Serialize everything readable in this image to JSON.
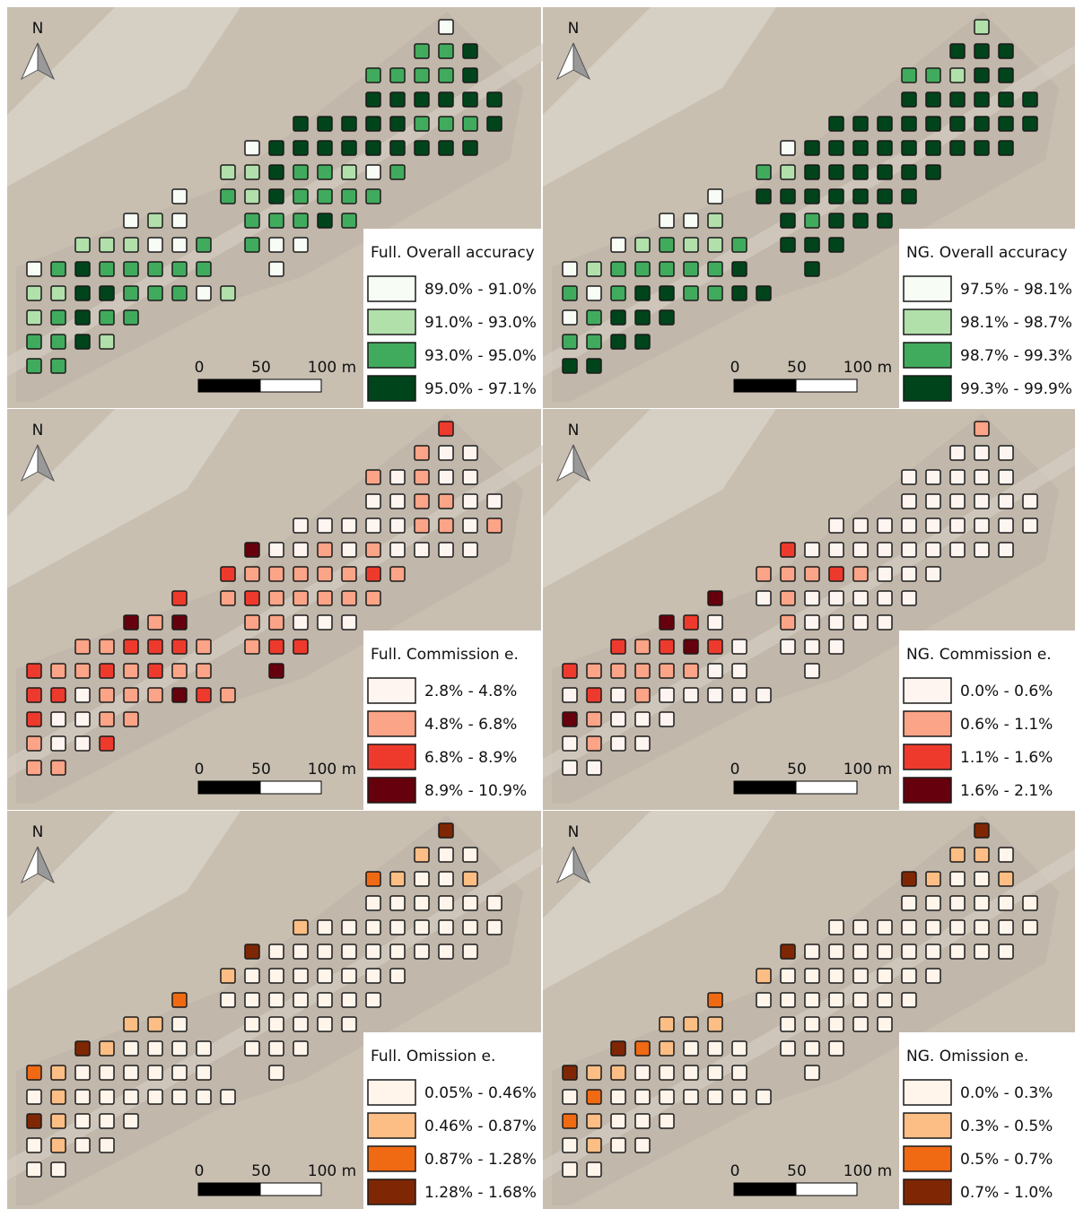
{
  "panels": [
    {
      "north": "N",
      "scale": [
        "0",
        "50",
        "100 m"
      ],
      "title": "Full. Overall accuracy",
      "legend": [
        {
          "label": "89.0% - 91.0%",
          "color": "#f7fcf5"
        },
        {
          "label": "91.0% - 93.0%",
          "color": "#b2e0ab"
        },
        {
          "label": "93.0% - 95.0%",
          "color": "#41ab5d"
        },
        {
          "label": "95.0% - 97.1%",
          "color": "#00441b"
        }
      ],
      "cells": [
        [
          0
        ],
        [
          2,
          2,
          3
        ],
        [
          2,
          2,
          2,
          2,
          3
        ],
        [
          3,
          3,
          3,
          3,
          3,
          3
        ],
        [
          3,
          3,
          3,
          3,
          3,
          2,
          2,
          2,
          3
        ],
        [
          0,
          3,
          3,
          3,
          3,
          3,
          3,
          3,
          3,
          3
        ],
        [
          1,
          1,
          3,
          2,
          2,
          1,
          0,
          2
        ],
        [
          0,
          2,
          1,
          3,
          2,
          2,
          2,
          2
        ],
        [
          0,
          1,
          0,
          2,
          2,
          2,
          3,
          2
        ],
        [
          1,
          1,
          1,
          0,
          0,
          2,
          2,
          0,
          0
        ],
        [
          0,
          2,
          3,
          2,
          2,
          2,
          2,
          2,
          0
        ],
        [
          1,
          1,
          3,
          3,
          2,
          2,
          2,
          0,
          1
        ],
        [
          1,
          2,
          3,
          2,
          2
        ],
        [
          2,
          2,
          3,
          1
        ],
        [
          2,
          2
        ]
      ]
    },
    {
      "north": "N",
      "scale": [
        "0",
        "50",
        "100 m"
      ],
      "title": "NG. Overall accuracy",
      "legend": [
        {
          "label": "97.5% - 98.1%",
          "color": "#f7fcf5"
        },
        {
          "label": "98.1% - 98.7%",
          "color": "#b2e0ab"
        },
        {
          "label": "98.7% - 99.3%",
          "color": "#41ab5d"
        },
        {
          "label": "99.3% - 99.9%",
          "color": "#00441b"
        }
      ],
      "cells": [
        [
          1
        ],
        [
          3,
          3,
          3
        ],
        [
          2,
          2,
          1,
          3,
          3
        ],
        [
          3,
          3,
          3,
          3,
          3,
          3
        ],
        [
          3,
          3,
          3,
          3,
          3,
          3,
          3,
          3,
          3
        ],
        [
          0,
          3,
          3,
          3,
          3,
          3,
          3,
          3,
          3,
          3
        ],
        [
          2,
          1,
          3,
          3,
          3,
          3,
          3,
          3
        ],
        [
          0,
          3,
          3,
          3,
          3,
          3,
          3,
          3
        ],
        [
          0,
          0,
          1,
          3,
          2,
          3,
          3,
          3
        ],
        [
          0,
          1,
          2,
          1,
          1,
          2,
          3,
          3,
          3
        ],
        [
          0,
          1,
          2,
          2,
          2,
          2,
          2,
          3,
          3
        ],
        [
          2,
          0,
          2,
          3,
          3,
          2,
          2,
          3,
          3
        ],
        [
          0,
          2,
          3,
          3,
          3
        ],
        [
          2,
          2,
          3,
          3
        ],
        [
          3,
          3
        ]
      ]
    },
    {
      "north": "N",
      "scale": [
        "0",
        "50",
        "100 m"
      ],
      "title": "Full. Commission e.",
      "legend": [
        {
          "label": "2.8% - 4.8%",
          "color": "#fff5f0"
        },
        {
          "label": "4.8% - 6.8%",
          "color": "#fca487"
        },
        {
          "label": "6.8% - 8.9%",
          "color": "#ee3a2c"
        },
        {
          "label": "8.9% - 10.9%",
          "color": "#67000d"
        }
      ],
      "cells": [
        [
          2
        ],
        [
          1,
          0,
          0
        ],
        [
          1,
          0,
          1,
          0,
          0
        ],
        [
          0,
          0,
          1,
          1,
          0,
          0
        ],
        [
          0,
          0,
          0,
          0,
          0,
          1,
          1,
          0,
          1
        ],
        [
          3,
          0,
          0,
          1,
          0,
          1,
          0,
          0,
          0,
          0
        ],
        [
          2,
          1,
          1,
          1,
          1,
          1,
          2,
          1
        ],
        [
          2,
          1,
          2,
          1,
          1,
          1,
          1,
          1
        ],
        [
          3,
          1,
          3,
          1,
          1,
          0,
          0,
          0
        ],
        [
          1,
          1,
          2,
          2,
          2,
          1,
          1,
          2,
          2
        ],
        [
          2,
          1,
          1,
          2,
          1,
          2,
          1,
          1,
          3
        ],
        [
          2,
          2,
          0,
          1,
          1,
          1,
          3,
          2,
          1
        ],
        [
          2,
          0,
          0,
          1,
          1
        ],
        [
          1,
          0,
          0,
          2
        ],
        [
          1,
          1
        ]
      ]
    },
    {
      "north": "N",
      "scale": [
        "0",
        "50",
        "100 m"
      ],
      "title": "NG. Commission e.",
      "legend": [
        {
          "label": "0.0% - 0.6%",
          "color": "#fff5f0"
        },
        {
          "label": "0.6% - 1.1%",
          "color": "#fca487"
        },
        {
          "label": "1.1% - 1.6%",
          "color": "#ee3a2c"
        },
        {
          "label": "1.6% - 2.1%",
          "color": "#67000d"
        }
      ],
      "cells": [
        [
          1
        ],
        [
          0,
          0,
          0
        ],
        [
          0,
          0,
          0,
          0,
          0
        ],
        [
          0,
          0,
          0,
          0,
          0,
          0
        ],
        [
          0,
          0,
          0,
          0,
          0,
          0,
          0,
          0,
          0
        ],
        [
          2,
          0,
          0,
          0,
          0,
          0,
          0,
          0,
          0,
          0
        ],
        [
          1,
          1,
          1,
          2,
          1,
          0,
          0,
          0
        ],
        [
          3,
          0,
          1,
          0,
          0,
          0,
          0,
          0
        ],
        [
          3,
          2,
          0,
          1,
          0,
          0,
          0,
          0
        ],
        [
          2,
          1,
          2,
          3,
          2,
          0,
          0,
          0,
          0
        ],
        [
          2,
          1,
          1,
          1,
          1,
          1,
          0,
          0,
          0
        ],
        [
          0,
          2,
          0,
          1,
          0,
          0,
          0,
          0,
          0
        ],
        [
          3,
          1,
          0,
          0,
          0
        ],
        [
          0,
          1,
          0,
          0
        ],
        [
          0,
          0
        ]
      ]
    },
    {
      "north": "N",
      "scale": [
        "0",
        "50",
        "100 m"
      ],
      "title": "Full. Omission e.",
      "legend": [
        {
          "label": "0.05% - 0.46%",
          "color": "#fff5eb"
        },
        {
          "label": "0.46% - 0.87%",
          "color": "#fdbe85"
        },
        {
          "label": "0.87% - 1.28%",
          "color": "#f06913"
        },
        {
          "label": "1.28% - 1.68%",
          "color": "#7f2704"
        }
      ],
      "cells": [
        [
          3
        ],
        [
          1,
          0,
          0
        ],
        [
          2,
          1,
          0,
          0,
          1
        ],
        [
          0,
          0,
          0,
          0,
          0,
          0
        ],
        [
          1,
          0,
          0,
          0,
          0,
          0,
          0,
          0,
          0
        ],
        [
          3,
          0,
          0,
          0,
          0,
          0,
          0,
          0,
          0,
          0
        ],
        [
          1,
          0,
          0,
          0,
          0,
          0,
          0,
          0
        ],
        [
          2,
          0,
          0,
          0,
          0,
          0,
          0,
          0
        ],
        [
          1,
          1,
          0,
          0,
          0,
          0,
          0,
          0
        ],
        [
          3,
          1,
          0,
          0,
          0,
          0,
          0,
          0,
          0
        ],
        [
          2,
          1,
          0,
          0,
          0,
          0,
          0,
          0,
          0
        ],
        [
          0,
          1,
          0,
          0,
          0,
          0,
          0,
          0,
          0
        ],
        [
          3,
          1,
          0,
          0,
          0
        ],
        [
          0,
          1,
          0,
          0
        ],
        [
          0,
          0
        ]
      ]
    },
    {
      "north": "N",
      "scale": [
        "0",
        "50",
        "100 m"
      ],
      "title": "NG. Omission e.",
      "legend": [
        {
          "label": "0.0% - 0.3%",
          "color": "#fff5eb"
        },
        {
          "label": "0.3% - 0.5%",
          "color": "#fdbe85"
        },
        {
          "label": "0.5% - 0.7%",
          "color": "#f06913"
        },
        {
          "label": "0.7% - 1.0%",
          "color": "#7f2704"
        }
      ],
      "cells": [
        [
          3
        ],
        [
          1,
          1,
          0
        ],
        [
          3,
          1,
          0,
          0,
          1
        ],
        [
          0,
          0,
          0,
          0,
          0,
          0
        ],
        [
          0,
          0,
          0,
          0,
          0,
          0,
          0,
          0,
          0
        ],
        [
          3,
          0,
          0,
          0,
          0,
          0,
          0,
          0,
          0,
          0
        ],
        [
          1,
          0,
          0,
          0,
          0,
          0,
          0,
          0
        ],
        [
          2,
          0,
          0,
          0,
          0,
          0,
          0,
          0
        ],
        [
          1,
          1,
          1,
          0,
          0,
          0,
          0,
          0
        ],
        [
          3,
          2,
          1,
          0,
          0,
          0,
          0,
          0,
          0
        ],
        [
          3,
          1,
          1,
          0,
          0,
          0,
          0,
          0,
          0
        ],
        [
          0,
          2,
          0,
          0,
          0,
          0,
          0,
          0,
          0
        ],
        [
          2,
          1,
          0,
          0,
          0
        ],
        [
          0,
          1,
          0,
          0
        ],
        [
          0,
          0
        ]
      ]
    }
  ]
}
